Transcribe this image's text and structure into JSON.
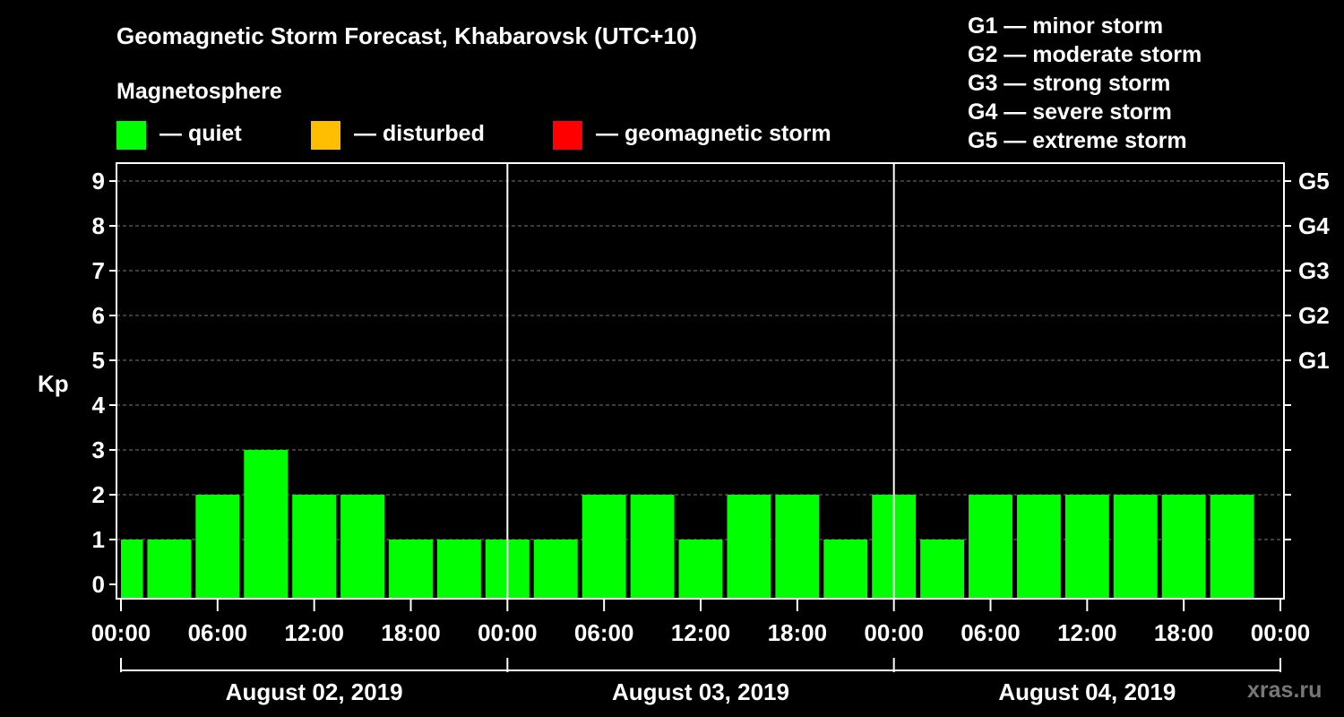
{
  "chart_data": {
    "type": "bar",
    "title": "Geomagnetic Storm Forecast, Khabarovsk (UTC+10)",
    "legend_title": "Magnetosphere",
    "legend": [
      {
        "label": "— quiet",
        "color": "#00ff00"
      },
      {
        "label": "— disturbed",
        "color": "#ffbf00"
      },
      {
        "label": "— geomagnetic storm",
        "color": "#ff0000"
      }
    ],
    "storm_scale": [
      "G1 — minor storm",
      "G2 — moderate storm",
      "G3 — strong storm",
      "G4 — severe storm",
      "G5 — extreme storm"
    ],
    "ylabel": "Kp",
    "ylim": [
      0,
      9
    ],
    "y_ticks": [
      "0",
      "1",
      "2",
      "3",
      "4",
      "5",
      "6",
      "7",
      "8",
      "9"
    ],
    "right_ticks": [
      {
        "kp": 5,
        "label": "G1"
      },
      {
        "kp": 6,
        "label": "G2"
      },
      {
        "kp": 7,
        "label": "G3"
      },
      {
        "kp": 8,
        "label": "G4"
      },
      {
        "kp": 9,
        "label": "G5"
      }
    ],
    "x_ticks": [
      "00:00",
      "06:00",
      "12:00",
      "18:00",
      "00:00",
      "06:00",
      "12:00",
      "18:00",
      "00:00",
      "06:00",
      "12:00",
      "18:00",
      "00:00"
    ],
    "days": [
      "August 02, 2019",
      "August 03, 2019",
      "August 04, 2019"
    ],
    "interval_hours": 3,
    "values": [
      1,
      1,
      2,
      3,
      2,
      2,
      1,
      1,
      1,
      1,
      2,
      2,
      1,
      2,
      2,
      1,
      2,
      1,
      2,
      2,
      2,
      2,
      2,
      2
    ],
    "watermark": "xras.ru"
  }
}
